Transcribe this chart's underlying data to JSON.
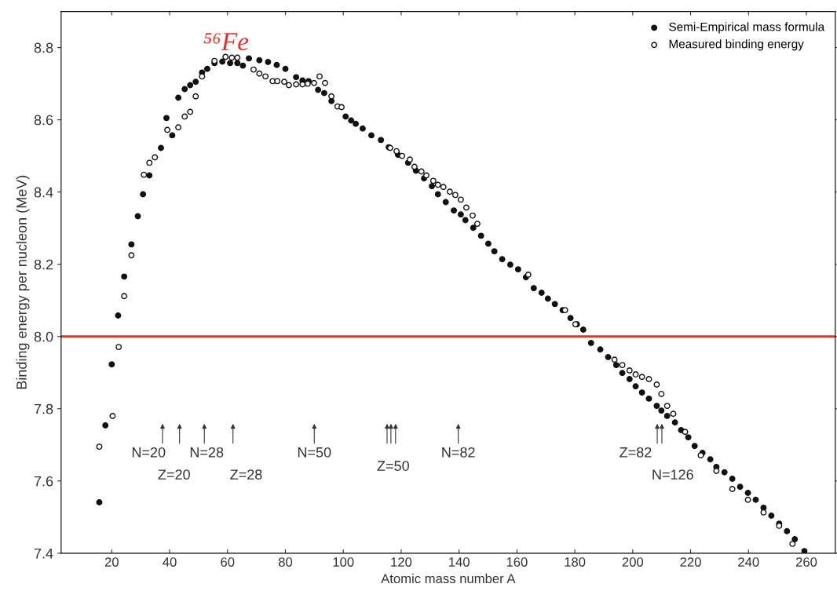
{
  "chart_data": {
    "type": "scatter",
    "xlabel": "Atomic mass number A",
    "ylabel": "Binding energy per nucleon (MeV)",
    "xlim": [
      2.5,
      270
    ],
    "ylim": [
      7.4,
      8.9
    ],
    "xticks": [
      20,
      40,
      60,
      80,
      100,
      120,
      140,
      160,
      180,
      200,
      220,
      240,
      260
    ],
    "yticks": [
      {
        "value": 7.4,
        "label": "7.4"
      },
      7.6,
      7.8,
      {
        "value": 8.0,
        "label": "8.0"
      },
      8.2,
      8.4,
      8.6,
      8.8
    ],
    "grid": false,
    "legend": "top right",
    "ref_lines": [
      {
        "axis": "y",
        "value": 8.0,
        "color": "#e8302a"
      }
    ],
    "annotations": [
      "⁵⁶Fe",
      "N=20",
      "Z=20",
      "N=28",
      "Z=28",
      "N=50",
      "Z=50",
      "N=82",
      "Z=82",
      "N=126"
    ],
    "series": [
      {
        "name": "Semi-Empirical mass formula",
        "color": "#111111",
        "marker": "circle",
        "x": [
          15.7,
          17.8,
          20,
          22.2,
          24.3,
          26.8,
          29,
          30.8,
          33,
          37,
          38.9,
          40.9,
          43,
          45.2,
          47.1,
          49,
          51.2,
          53,
          55.5,
          58.2,
          60.9,
          63.4,
          65.3,
          67.4,
          71,
          74,
          77,
          80,
          83.7,
          85.9,
          88,
          91.3,
          93.4,
          95.9,
          100.8,
          102.7,
          104.3,
          106.7,
          109.7,
          113,
          115.7,
          118.9,
          122.4,
          125.1,
          127.9,
          130.6,
          132.7,
          135.4,
          138.2,
          140.6,
          142.2,
          144.9,
          147.6,
          150.1,
          152.2,
          154.9,
          157.7,
          160.4,
          163.1,
          165.8,
          168.5,
          170.7,
          173.1,
          175.8,
          178.5,
          180.7,
          182.9,
          185.6,
          188.8,
          191.5,
          194.3,
          196.4,
          198.9,
          201,
          203.2,
          205.6,
          208.3,
          209.9,
          211.9,
          214.6,
          216.7,
          219.2,
          221.4,
          224.1,
          226.8,
          228.9,
          231.7,
          234.4,
          237.1,
          239.8,
          242.5,
          245.2,
          247.9,
          250.6,
          253.3,
          256,
          259.3
        ],
        "values": [
          7.541,
          7.754,
          7.923,
          8.058,
          8.166,
          8.255,
          8.333,
          8.394,
          8.446,
          8.522,
          8.605,
          8.557,
          8.661,
          8.685,
          8.696,
          8.705,
          8.731,
          8.741,
          8.757,
          8.761,
          8.757,
          8.757,
          8.75,
          8.77,
          8.765,
          8.76,
          8.752,
          8.741,
          8.718,
          8.709,
          8.707,
          8.683,
          8.674,
          8.652,
          8.609,
          8.598,
          8.589,
          8.576,
          8.557,
          8.544,
          8.524,
          8.503,
          8.481,
          8.459,
          8.438,
          8.416,
          8.394,
          8.372,
          8.349,
          8.338,
          8.322,
          8.301,
          8.279,
          8.257,
          8.236,
          8.214,
          8.199,
          8.186,
          8.164,
          8.134,
          8.121,
          8.105,
          8.09,
          8.073,
          8.051,
          8.034,
          8.019,
          7.982,
          7.964,
          7.943,
          7.921,
          7.899,
          7.882,
          7.862,
          7.845,
          7.828,
          7.808,
          7.795,
          7.78,
          7.762,
          7.741,
          7.721,
          7.697,
          7.678,
          7.66,
          7.639,
          7.624,
          7.606,
          7.584,
          7.567,
          7.548,
          7.526,
          7.504,
          7.482,
          7.461,
          7.439,
          7.406
        ]
      },
      {
        "name": "Measured binding energy",
        "color": "#111111",
        "marker": "circle",
        "x": [
          15.7,
          20.3,
          22.4,
          24.3,
          26.8,
          31.1,
          33,
          34.9,
          39.2,
          43,
          45.2,
          47.1,
          49,
          51.2,
          55.5,
          59.3,
          61.5,
          63.4,
          69,
          71,
          73.1,
          75.6,
          77.2,
          79.6,
          81.2,
          83.7,
          85.9,
          87.7,
          89.9,
          91.8,
          93.7,
          95.9,
          98,
          99.4,
          116.2,
          118.4,
          120.3,
          123,
          124.6,
          127,
          128.7,
          131.1,
          132.7,
          134.6,
          136.8,
          138.7,
          140.6,
          142.5,
          144.7,
          146.3,
          163.9,
          176.6,
          180.2,
          193.7,
          196.4,
          198.9,
          201,
          203.2,
          205.6,
          208.3,
          209.9,
          211.9,
          214,
          218.1,
          223.5,
          228.9,
          234.4,
          239.8,
          245.2,
          250.6,
          255.2
        ],
        "values": [
          7.695,
          7.78,
          7.971,
          8.112,
          8.225,
          8.448,
          8.481,
          8.496,
          8.572,
          8.579,
          8.609,
          8.622,
          8.665,
          8.72,
          8.763,
          8.774,
          8.772,
          8.772,
          8.739,
          8.728,
          8.72,
          8.707,
          8.707,
          8.705,
          8.696,
          8.698,
          8.698,
          8.7,
          8.702,
          8.72,
          8.702,
          8.665,
          8.637,
          8.635,
          8.522,
          8.513,
          8.5,
          8.49,
          8.47,
          8.457,
          8.446,
          8.431,
          8.42,
          8.414,
          8.401,
          8.392,
          8.379,
          8.357,
          8.335,
          8.312,
          8.171,
          8.073,
          8.034,
          7.936,
          7.921,
          7.906,
          7.895,
          7.888,
          7.882,
          7.867,
          7.841,
          7.808,
          7.786,
          7.736,
          7.671,
          7.628,
          7.578,
          7.548,
          7.513,
          7.476,
          7.426
        ]
      }
    ]
  }
}
